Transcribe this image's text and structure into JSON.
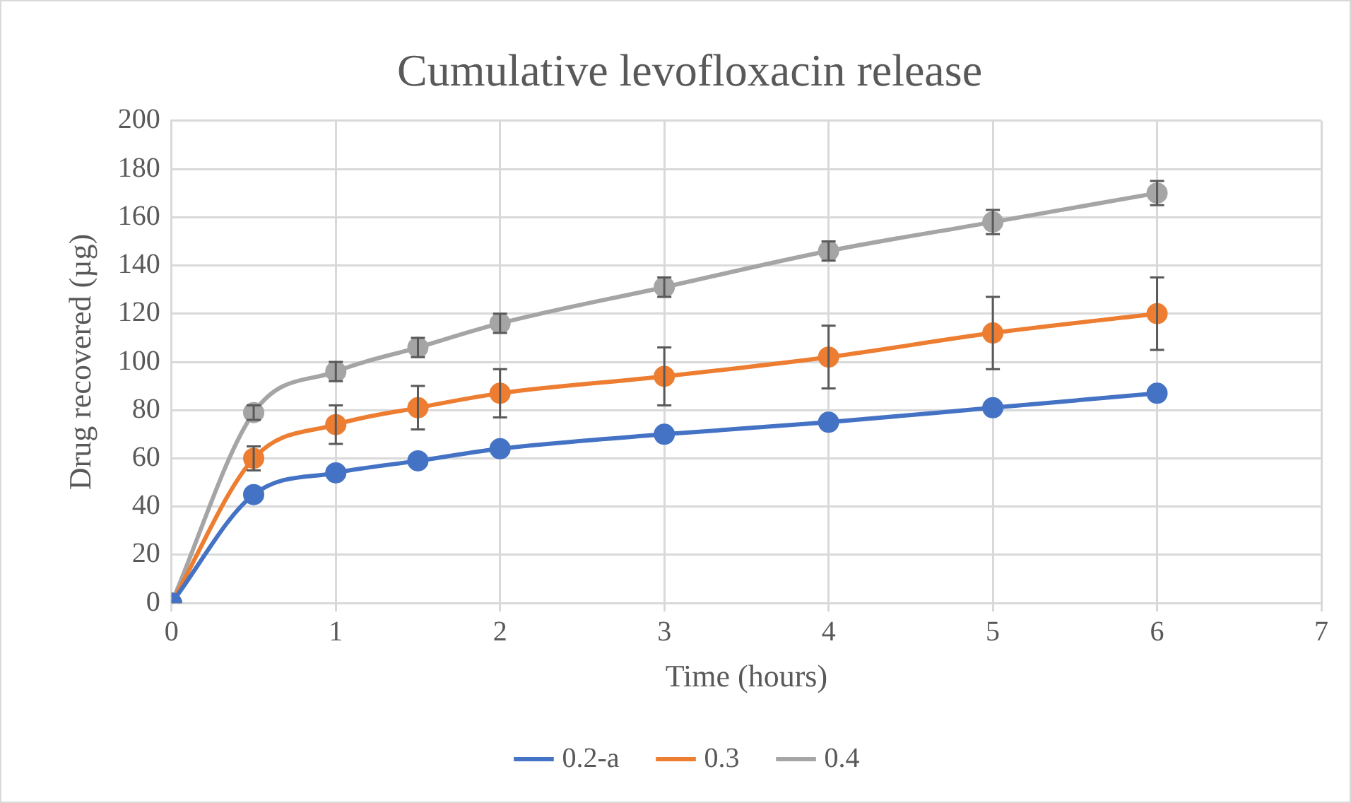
{
  "chart_data": {
    "type": "line",
    "title": "Cumulative levofloxacin release",
    "xlabel": "Time (hours)",
    "ylabel": "Drug recovered (µg)",
    "x": [
      0,
      0.5,
      1,
      1.5,
      2,
      3,
      4,
      5,
      6
    ],
    "xlim": [
      0,
      7
    ],
    "xticks": [
      0,
      1,
      2,
      3,
      4,
      5,
      6,
      7
    ],
    "ylim": [
      0,
      200
    ],
    "yticks": [
      0,
      20,
      40,
      60,
      80,
      100,
      120,
      140,
      160,
      180,
      200
    ],
    "grid": true,
    "legend": "bottom",
    "marker": "circle",
    "line_style": "solid",
    "series": [
      {
        "name": "0.2-a",
        "color": "#4472c4",
        "values": [
          0,
          45,
          54,
          59,
          64,
          70,
          75,
          81,
          87
        ]
      },
      {
        "name": "0.3",
        "color": "#ed7d31",
        "values": [
          0,
          60,
          74,
          81,
          87,
          94,
          102,
          112,
          120
        ],
        "errors": [
          null,
          5,
          8,
          9,
          10,
          12,
          13,
          15,
          15
        ]
      },
      {
        "name": "0.4",
        "color": "#a5a5a5",
        "values": [
          0,
          79,
          96,
          106,
          116,
          131,
          146,
          158,
          170
        ],
        "errors": [
          null,
          3,
          4,
          4,
          4,
          4,
          4,
          5,
          5
        ]
      }
    ]
  }
}
